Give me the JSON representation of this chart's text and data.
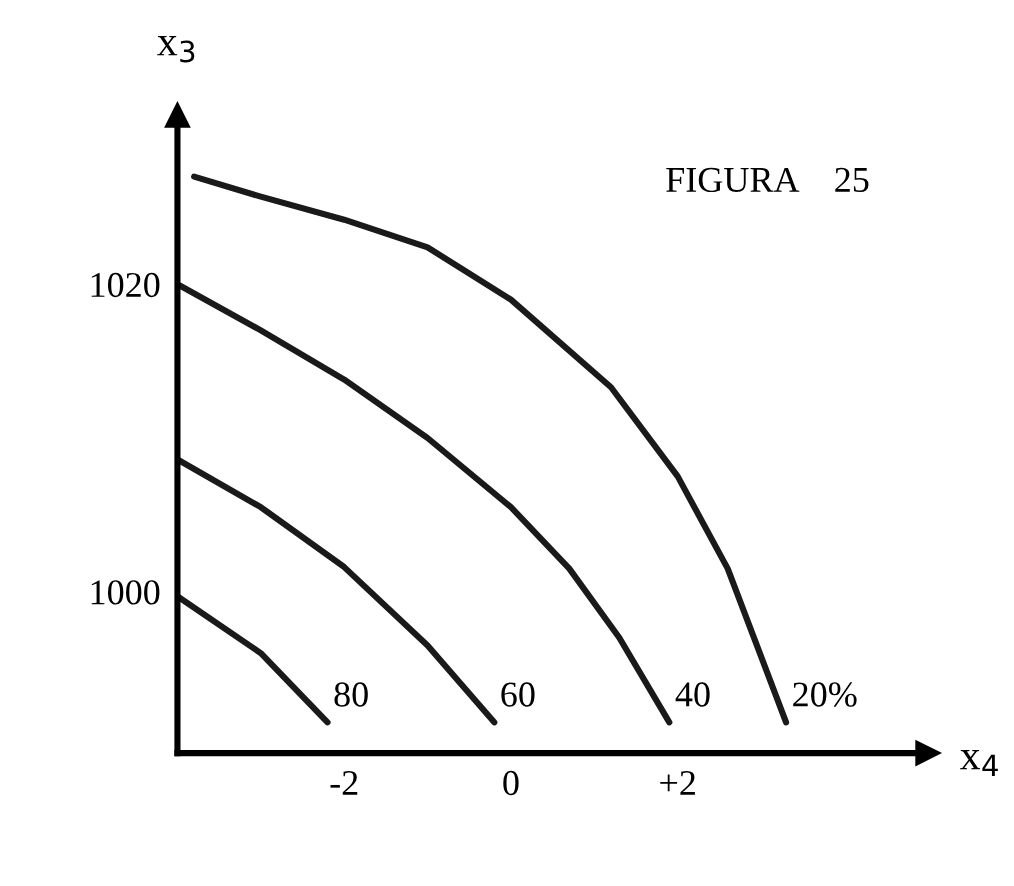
{
  "chart_data": {
    "type": "line",
    "title": "FIGURA    25",
    "xlabel": "x$_{4}$",
    "ylabel": "x$_{3}$",
    "series": [
      {
        "color": "#1a1a1a",
        "x": [
          -4,
          -3,
          -2.2
        ],
        "values": [
          999.7,
          996,
          991.5
        ]
      },
      {
        "color": "#1a1a1a",
        "x": [
          -4,
          -3,
          -2,
          -1,
          -0.2
        ],
        "values": [
          1008.6,
          1005.5,
          1001.6,
          996.5,
          991.5
        ]
      },
      {
        "color": "#1a1a1a",
        "x": [
          -4,
          -3,
          -2,
          -1,
          0,
          0.7,
          1.3,
          1.9
        ],
        "values": [
          1020,
          1017,
          1013.8,
          1010,
          1005.5,
          1001.5,
          997,
          991.5
        ]
      },
      {
        "color": "#1a1a1a",
        "x": [
          -3.8,
          -3,
          -2,
          -1,
          0,
          1.2,
          2,
          2.6,
          3.3
        ],
        "values": [
          1027,
          1025.7,
          1024.2,
          1022.4,
          1019,
          1013.3,
          1007.5,
          1001.5,
          991.5
        ]
      }
    ],
    "annotations": [
      {
        "text": "80",
        "x": -2.2,
        "y": 991.5
      },
      {
        "text": "60",
        "x": -0.2,
        "y": 991.5
      },
      {
        "text": "40",
        "x": 1.9,
        "y": 991.5
      },
      {
        "text": "20%",
        "x": 3.3,
        "y": 991.5
      }
    ],
    "xlim": [
      -4,
      5
    ],
    "ylim": [
      989.5,
      1031
    ],
    "xticks": [
      -2,
      0,
      {
        "value": 2,
        "label": "+2"
      }
    ],
    "yticks": [
      1000,
      1020
    ],
    "grid": false,
    "legend": false,
    "marker": "none",
    "line_style": "solid"
  }
}
